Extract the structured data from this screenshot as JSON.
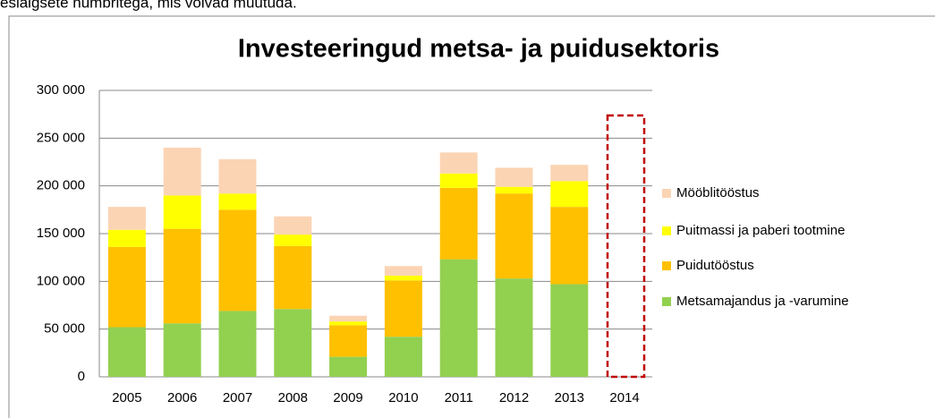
{
  "caption": "eslaigsete numbritega, mis võivad muutuda.",
  "chart_data": {
    "type": "stacked_bar",
    "title": "Investeeringud metsa- ja puidusektoris",
    "categories": [
      "2005",
      "2006",
      "2007",
      "2008",
      "2009",
      "2010",
      "2011",
      "2012",
      "2013",
      "2014"
    ],
    "series": [
      {
        "name": "Metsamajandus ja -varumine",
        "color": "#92d050",
        "values": [
          52000,
          56000,
          69000,
          71000,
          21000,
          42000,
          123000,
          103000,
          97000,
          null
        ]
      },
      {
        "name": "Puidutööstus",
        "color": "#ffc000",
        "values": [
          84000,
          99000,
          106000,
          66000,
          33000,
          59000,
          75000,
          89000,
          81000,
          null
        ]
      },
      {
        "name": "Puitmassi ja paberi tootmine",
        "color": "#ffff00",
        "values": [
          18000,
          35000,
          17000,
          12000,
          4000,
          5000,
          15000,
          7000,
          27000,
          null
        ]
      },
      {
        "name": "Mööblitööstus",
        "color": "#fbd4b4",
        "values": [
          24000,
          50000,
          36000,
          19000,
          6000,
          10000,
          22000,
          20000,
          17000,
          null
        ]
      }
    ],
    "ylim": [
      0,
      300000
    ],
    "yticks": [
      0,
      {
        "value": 50000,
        "label": "50 000"
      },
      {
        "value": 100000,
        "label": "100 000"
      },
      {
        "value": 150000,
        "label": "150 000"
      },
      {
        "value": 200000,
        "label": "200 000"
      },
      {
        "value": 250000,
        "label": "250 000"
      },
      {
        "value": 300000,
        "label": "300 000"
      }
    ],
    "grid": true,
    "legend": "right"
  }
}
